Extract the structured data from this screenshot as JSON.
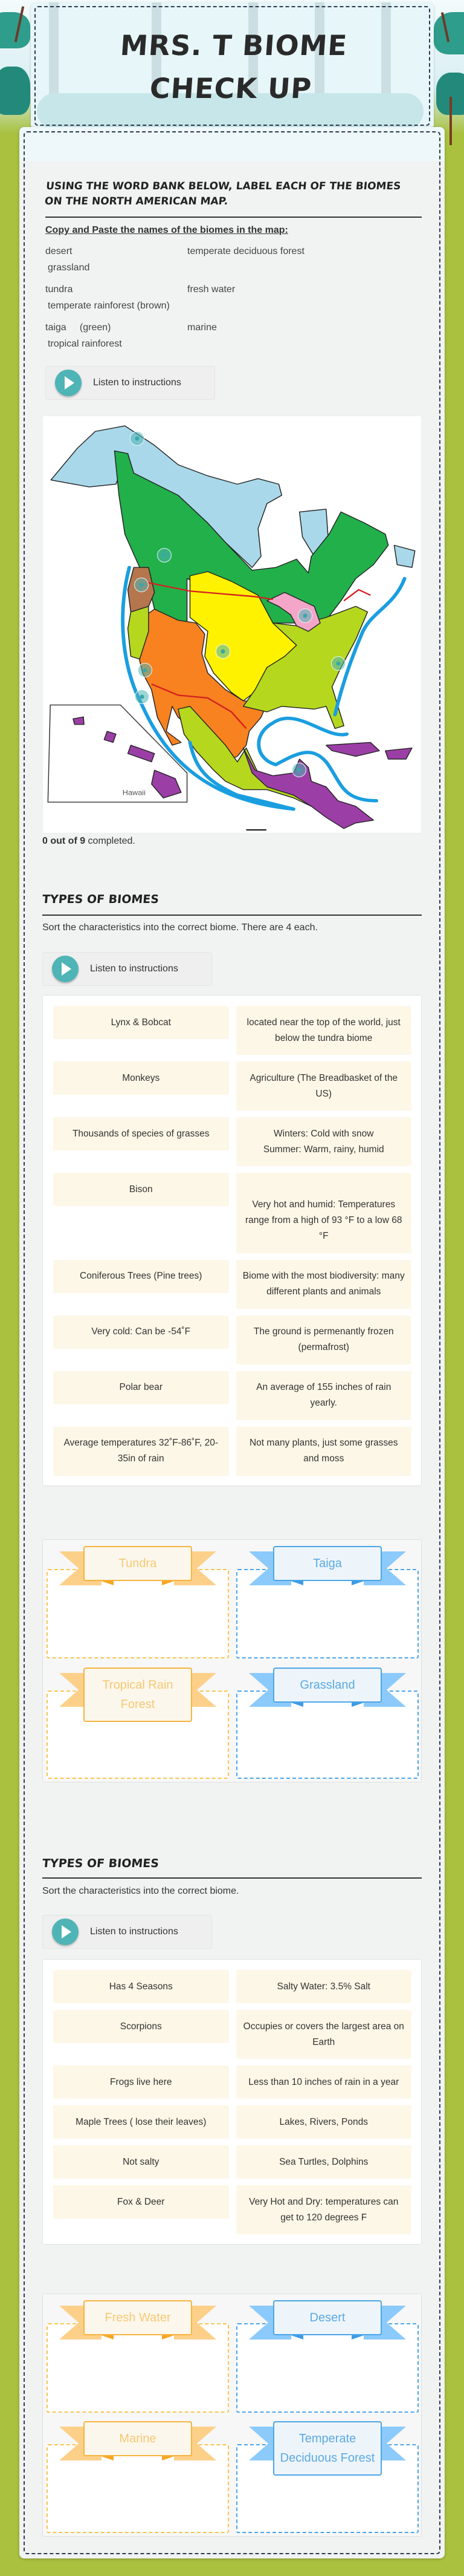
{
  "header": {
    "title": "MRS. T BIOME CHECK UP"
  },
  "colors": {
    "background": "#a9c13f",
    "accent": "#4fb4b5",
    "card": "#fdf7e7",
    "orange_category": "#f6b440",
    "blue_category": "#4ba6e6"
  },
  "section1": {
    "heading": "Using the word bank below, label each of the biomes on the North American map.",
    "subheading": "Copy and Paste the names of the biomes in the map:",
    "word_bank": [
      {
        "a": "desert",
        "b": "temperate deciduous forest",
        "c": "grassland"
      },
      {
        "a": "tundra",
        "b": "fresh water",
        "c": "temperate rainforest (brown)"
      },
      {
        "a": "taiga     (green)",
        "b": "marine",
        "c": "tropical rainforest"
      }
    ],
    "listen_label": "Listen to instructions",
    "map": {
      "inset_label": "Hawaii",
      "hotspots": 9
    },
    "progress": {
      "completed": 0,
      "total": 9,
      "count_text": "0 out of 9",
      "suffix": " completed."
    }
  },
  "section2": {
    "heading": "Types of Biomes",
    "instruction": "Sort the characteristics into the correct biome. There are 4 each.",
    "listen_label": "Listen to instructions",
    "cards": [
      [
        "Lynx & Bobcat",
        "located near the top of the world, just below the tundra biome"
      ],
      [
        "Monkeys",
        "Agriculture (The Breadbasket of the US)"
      ],
      [
        "Thousands of species of grasses",
        "Winters:  Cold with snow\nSummer:  Warm, rainy, humid"
      ],
      [
        "Bison",
        "Very hot and humid:  Temperatures range from a high of 93 °F  to a low 68 °F"
      ],
      [
        "Coniferous Trees  (Pine trees)",
        "Biome with the most biodiversity:  many different plants and animals"
      ],
      [
        "Very cold:  Can be -54˚F",
        "The ground is permenantly frozen (permafrost)"
      ],
      [
        "Polar bear",
        "An average of 155 inches of rain yearly."
      ],
      [
        "Average temperatures 32˚F-86˚F, 20-35in of rain",
        "Not many plants, just some grasses and moss"
      ]
    ],
    "categories": [
      "Tundra",
      "Taiga",
      "Tropical Rain Forest",
      "Grassland"
    ]
  },
  "section3": {
    "heading": "Types of Biomes",
    "instruction": "Sort the characteristics into the correct biome.",
    "listen_label": "Listen to instructions",
    "cards": [
      [
        "Has 4 Seasons",
        "Salty Water:  3.5% Salt"
      ],
      [
        "Scorpions",
        "Occupies or covers the largest area on Earth"
      ],
      [
        "Frogs live here",
        "Less than 10 inches of rain in a year"
      ],
      [
        "Maple Trees ( lose their leaves)",
        "Lakes, Rivers, Ponds"
      ],
      [
        "Not salty",
        "Sea Turtles, Dolphins"
      ],
      [
        "Fox & Deer",
        "Very Hot and Dry:  temperatures can get to 120 degrees F"
      ]
    ],
    "categories": [
      "Fresh Water",
      "Desert",
      "Marine",
      "Temperate Deciduous Forest"
    ]
  }
}
